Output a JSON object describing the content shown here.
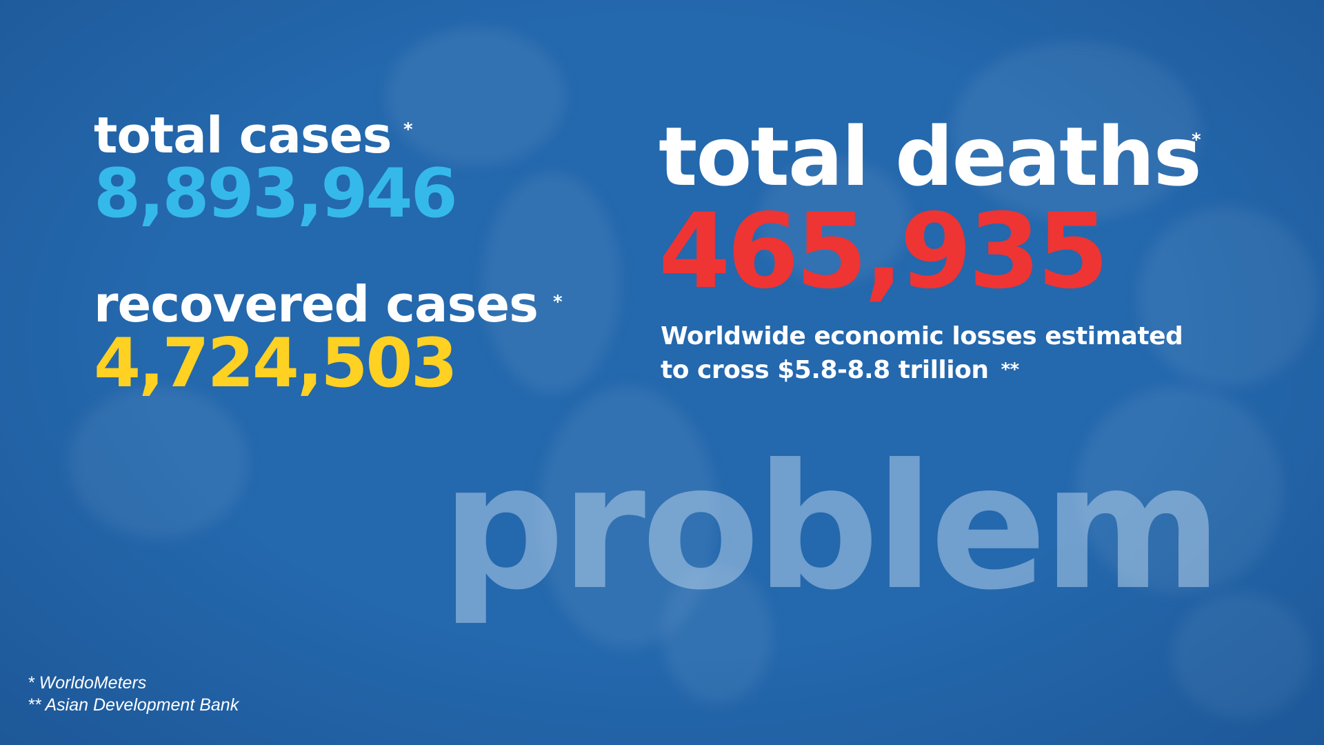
{
  "stats": {
    "total_cases": {
      "label": "total cases",
      "value": "8,893,946",
      "marker": "*",
      "color": "#35b9ea"
    },
    "recovered_cases": {
      "label": "recovered cases",
      "value": "4,724,503",
      "marker": "*",
      "color": "#fed123"
    },
    "total_deaths": {
      "label": "total deaths",
      "value": "465,935",
      "marker": "*",
      "color": "#ef3434"
    }
  },
  "economic_losses": {
    "line1": "Worldwide economic losses estimated",
    "line2": "to cross $5.8-8.8 trillion",
    "marker": "**"
  },
  "watermark": "problem",
  "sources": {
    "line1": "* WorldoMeters",
    "line2": "** Asian Development Bank"
  },
  "background_color": "#2468ad"
}
